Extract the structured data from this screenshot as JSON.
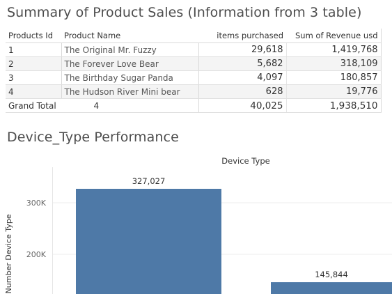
{
  "summary": {
    "title": "Summary of Product Sales (Information from 3 table)",
    "headers": {
      "id": "Products Id",
      "name": "Product Name",
      "items": "items purchased",
      "revenue": "Sum of Revenue usd"
    },
    "rows": [
      {
        "id": "1",
        "name": "The Original Mr. Fuzzy",
        "items": "29,618",
        "revenue": "1,419,768"
      },
      {
        "id": "2",
        "name": "The Forever Love Bear",
        "items": "5,682",
        "revenue": "318,109"
      },
      {
        "id": "3",
        "name": "The Birthday Sugar Panda",
        "items": "4,097",
        "revenue": "180,857"
      },
      {
        "id": "4",
        "name": "The Hudson River Mini bear",
        "items": "628",
        "revenue": "19,776"
      }
    ],
    "total": {
      "label": "Grand Total",
      "count": "4",
      "items": "40,025",
      "revenue": "1,938,510"
    }
  },
  "device_section": {
    "title": "Device_Type Performance"
  },
  "chart_data": {
    "type": "bar",
    "header": "Device Type",
    "ylabel": "l Number Device Type",
    "ylim": [
      120000,
      340000
    ],
    "yticks": [
      200000,
      300000
    ],
    "ytick_labels": [
      "200K",
      "300K"
    ],
    "values": [
      327027,
      145844
    ],
    "value_labels": [
      "327,027",
      "145,844"
    ],
    "bar_color": "#4e79a7",
    "grid": true
  }
}
